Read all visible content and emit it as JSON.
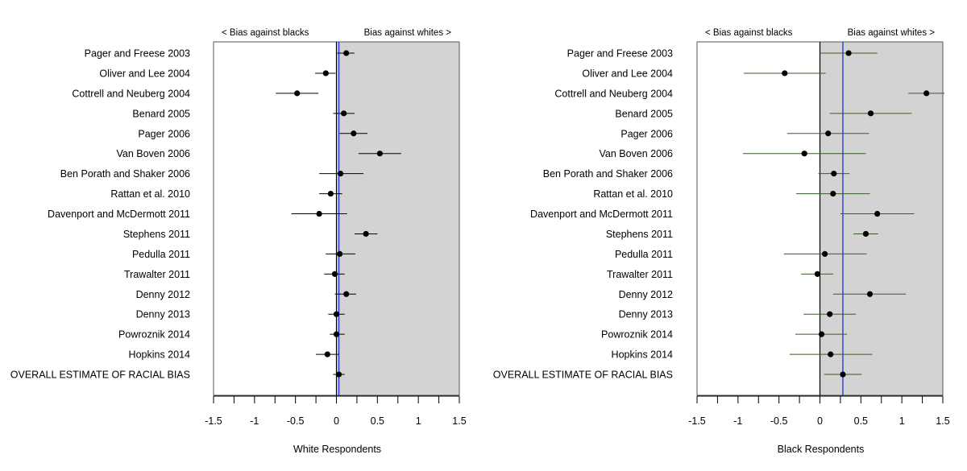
{
  "chart_data": [
    {
      "type": "forest",
      "panel": "left",
      "title": "",
      "xlabel": "White Respondents",
      "ylabel": "",
      "xlim": [
        -1.5,
        1.5
      ],
      "xticks": [
        -1.5,
        -1,
        -0.5,
        0,
        0.5,
        1,
        1.5
      ],
      "xtick_labels": [
        "-1.5",
        "-1",
        "-0.5",
        "0",
        "0.5",
        "1",
        "1.5"
      ],
      "zero_line": 0,
      "overall_line": 0.03,
      "shaded_region": [
        0,
        1.5
      ],
      "left_annotation": "< Bias against blacks",
      "right_annotation": "Bias against whites >",
      "studies": [
        {
          "label": "Pager and Freese 2003",
          "est": 0.12,
          "lo": 0.01,
          "hi": 0.22
        },
        {
          "label": "Oliver and Lee 2004",
          "est": -0.13,
          "lo": -0.26,
          "hi": -0.01
        },
        {
          "label": "Cottrell and Neuberg 2004",
          "est": -0.48,
          "lo": -0.74,
          "hi": -0.22
        },
        {
          "label": "Benard 2005",
          "est": 0.09,
          "lo": -0.04,
          "hi": 0.22
        },
        {
          "label": "Pager 2006",
          "est": 0.21,
          "lo": 0.04,
          "hi": 0.38
        },
        {
          "label": "Van Boven 2006",
          "est": 0.53,
          "lo": 0.27,
          "hi": 0.79
        },
        {
          "label": "Ben Porath and Shaker 2006",
          "est": 0.05,
          "lo": -0.21,
          "hi": 0.33
        },
        {
          "label": "Rattan et al. 2010",
          "est": -0.07,
          "lo": -0.21,
          "hi": 0.07
        },
        {
          "label": "Davenport and McDermott 2011",
          "est": -0.21,
          "lo": -0.55,
          "hi": 0.13
        },
        {
          "label": "Stephens 2011",
          "est": 0.36,
          "lo": 0.22,
          "hi": 0.5
        },
        {
          "label": "Pedulla 2011",
          "est": 0.04,
          "lo": -0.13,
          "hi": 0.23
        },
        {
          "label": "Trawalter 2011",
          "est": -0.02,
          "lo": -0.15,
          "hi": 0.1
        },
        {
          "label": "Denny 2012",
          "est": 0.12,
          "lo": -0.02,
          "hi": 0.24
        },
        {
          "label": "Denny 2013",
          "est": 0.0,
          "lo": -0.1,
          "hi": 0.1
        },
        {
          "label": "Powroznik 2014",
          "est": 0.0,
          "lo": -0.08,
          "hi": 0.1
        },
        {
          "label": "Hopkins 2014",
          "est": -0.11,
          "lo": -0.25,
          "hi": 0.03
        },
        {
          "label": "OVERALL ESTIMATE OF RACIAL BIAS",
          "est": 0.03,
          "lo": -0.04,
          "hi": 0.1
        }
      ]
    },
    {
      "type": "forest",
      "panel": "right",
      "title": "",
      "xlabel": "Black Respondents",
      "ylabel": "",
      "xlim": [
        -1.5,
        1.5
      ],
      "xticks": [
        -1.5,
        -1,
        -0.5,
        0,
        0.5,
        1,
        1.5
      ],
      "xtick_labels": [
        "-1.5",
        "-1",
        "-0.5",
        "0",
        "0.5",
        "1",
        "1.5"
      ],
      "zero_line": 0,
      "overall_line": 0.28,
      "shaded_region": [
        0,
        1.5
      ],
      "left_annotation": "< Bias against blacks",
      "right_annotation": "Bias against whites >",
      "studies": [
        {
          "label": "Pager and Freese 2003",
          "est": 0.35,
          "lo": 0.0,
          "hi": 0.7
        },
        {
          "label": "Oliver and Lee 2004",
          "est": -0.43,
          "lo": -0.93,
          "hi": 0.07
        },
        {
          "label": "Cottrell and Neuberg 2004",
          "est": 1.3,
          "lo": 1.08,
          "hi": 1.52
        },
        {
          "label": "Benard 2005",
          "est": 0.62,
          "lo": 0.12,
          "hi": 1.12
        },
        {
          "label": "Pager 2006",
          "est": 0.1,
          "lo": -0.4,
          "hi": 0.6
        },
        {
          "label": "Van Boven 2006",
          "est": -0.19,
          "lo": -0.94,
          "hi": 0.56
        },
        {
          "label": "Ben Porath and Shaker 2006",
          "est": 0.17,
          "lo": -0.02,
          "hi": 0.36
        },
        {
          "label": "Rattan et al. 2010",
          "est": 0.16,
          "lo": -0.29,
          "hi": 0.61
        },
        {
          "label": "Davenport and McDermott 2011",
          "est": 0.7,
          "lo": 0.25,
          "hi": 1.15
        },
        {
          "label": "Stephens 2011",
          "est": 0.56,
          "lo": 0.41,
          "hi": 0.71
        },
        {
          "label": "Pedulla 2011",
          "est": 0.06,
          "lo": -0.44,
          "hi": 0.57
        },
        {
          "label": "Trawalter 2011",
          "est": -0.03,
          "lo": -0.23,
          "hi": 0.16
        },
        {
          "label": "Denny 2012",
          "est": 0.61,
          "lo": 0.16,
          "hi": 1.05
        },
        {
          "label": "Denny 2013",
          "est": 0.12,
          "lo": -0.2,
          "hi": 0.44
        },
        {
          "label": "Powroznik 2014",
          "est": 0.02,
          "lo": -0.3,
          "hi": 0.33
        },
        {
          "label": "Hopkins 2014",
          "est": 0.13,
          "lo": -0.37,
          "hi": 0.64
        },
        {
          "label": "OVERALL ESTIMATE OF RACIAL BIAS",
          "est": 0.28,
          "lo": 0.05,
          "hi": 0.51
        }
      ]
    }
  ]
}
